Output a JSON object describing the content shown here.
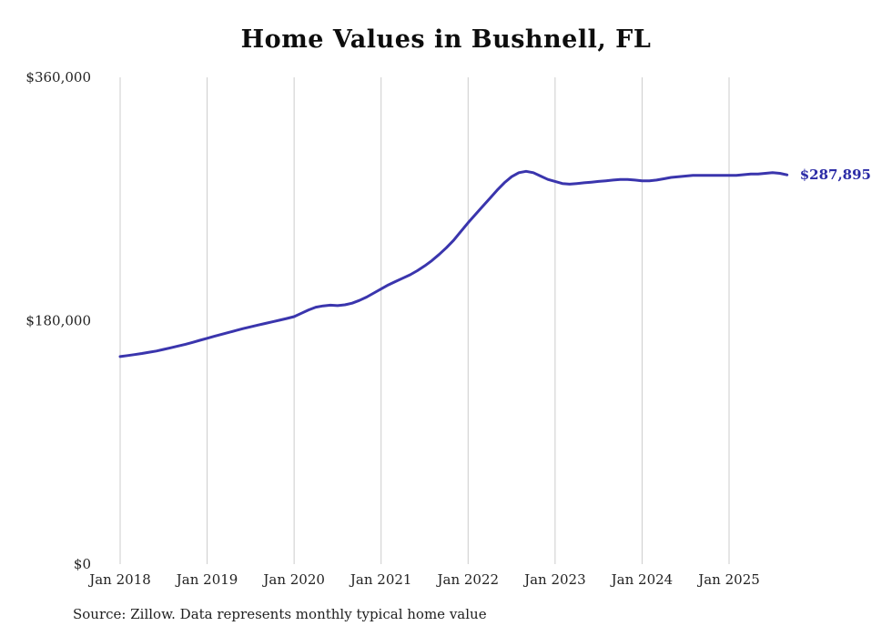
{
  "chart_data": {
    "type": "line",
    "title": "Home Values in Bushnell, FL",
    "source_note": "Source: Zillow. Data represents monthly typical home value",
    "end_label": "$287,895",
    "ylim": [
      0,
      360000
    ],
    "grid": "vertical-only",
    "legend": "none",
    "colors": {
      "line": "#3a35ad",
      "end_label": "#2b2ba6",
      "grid": "#cccccc",
      "tick_text": "#222222"
    },
    "y_ticks": [
      {
        "value": 0,
        "label": "$0"
      },
      {
        "value": 180000,
        "label": "$180,000"
      },
      {
        "value": 360000,
        "label": "$360,000"
      }
    ],
    "x_ticks": [
      "Jan 2018",
      "Jan 2019",
      "Jan 2020",
      "Jan 2021",
      "Jan 2022",
      "Jan 2023",
      "Jan 2024",
      "Jan 2025"
    ],
    "series": [
      {
        "name": "Typical home value",
        "start_month": "2018-01",
        "frequency": "monthly",
        "values": [
          153500,
          154200,
          155000,
          155800,
          156700,
          157600,
          158800,
          160000,
          161300,
          162600,
          164000,
          165500,
          167000,
          168500,
          170000,
          171400,
          172800,
          174200,
          175500,
          176800,
          178000,
          179200,
          180400,
          181700,
          183000,
          185500,
          188000,
          190000,
          191000,
          191500,
          191200,
          191800,
          193000,
          195000,
          197500,
          200500,
          203500,
          206500,
          209000,
          211500,
          214000,
          217000,
          220500,
          224500,
          229000,
          234000,
          239500,
          246000,
          252500,
          258500,
          264500,
          270500,
          276500,
          282000,
          286500,
          289500,
          290500,
          289500,
          287000,
          284500,
          283000,
          281500,
          281000,
          281500,
          282000,
          282500,
          283000,
          283500,
          284000,
          284500,
          284500,
          284000,
          283500,
          283500,
          284000,
          285000,
          286000,
          286500,
          287000,
          287500,
          287500,
          287500,
          287500,
          287500,
          287500,
          287500,
          288000,
          288500,
          288500,
          289000,
          289500,
          289000,
          287895
        ]
      }
    ]
  }
}
